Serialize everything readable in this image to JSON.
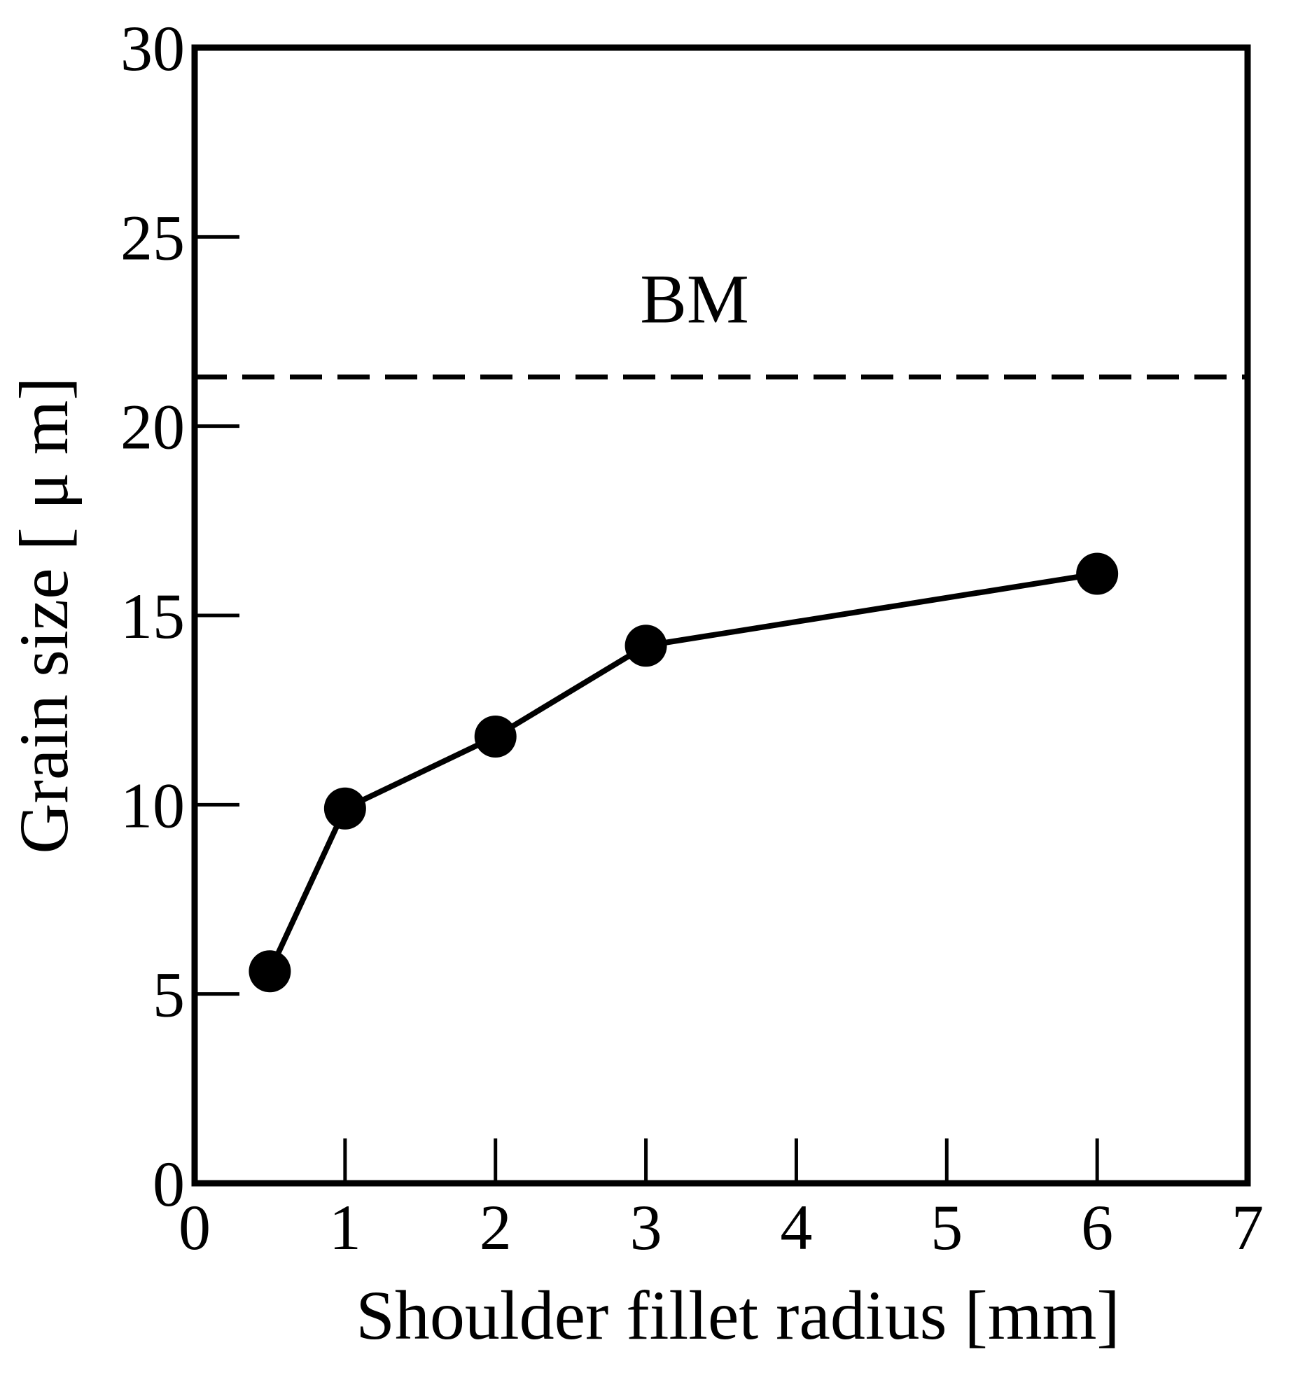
{
  "chart_data": {
    "type": "line",
    "xlabel": "Shoulder fillet radius [mm]",
    "ylabel": "Grain size [ μ m]",
    "xlim": [
      0,
      7
    ],
    "ylim": [
      0,
      30
    ],
    "xticks": [
      0,
      1,
      2,
      3,
      4,
      5,
      6,
      7
    ],
    "yticks": [
      0,
      5,
      10,
      15,
      20,
      25,
      30
    ],
    "grid": false,
    "series": [
      {
        "x": [
          0.5,
          1,
          2,
          3,
          6
        ],
        "y": [
          5.6,
          9.9,
          11.8,
          14.2,
          16.1
        ],
        "marker": "filled-circle",
        "color": "#000000"
      }
    ],
    "reference_lines": [
      {
        "label": "BM",
        "y": 21.3,
        "style": "dashed"
      }
    ]
  }
}
